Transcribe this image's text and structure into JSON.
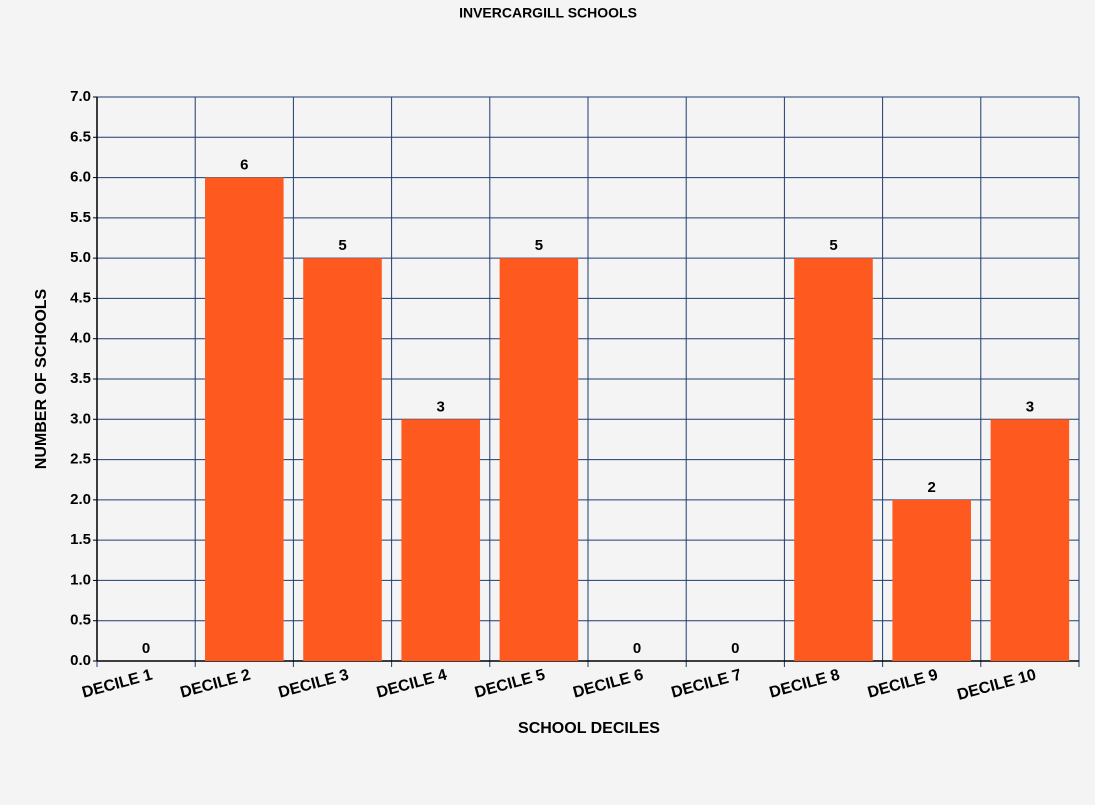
{
  "chart_data": {
    "type": "bar",
    "title": "INVERCARGILL SCHOOLS",
    "x_label": "SCHOOL DECILES",
    "y_label": "NUMBER OF SCHOOLS",
    "categories": [
      "DECILE 1",
      "DECILE 2",
      "DECILE 3",
      "DECILE 4",
      "DECILE 5",
      "DECILE 6",
      "DECILE 7",
      "DECILE 8",
      "DECILE 9",
      "DECILE 10"
    ],
    "values": [
      0,
      6,
      5,
      3,
      5,
      0,
      0,
      5,
      2,
      3
    ],
    "color": "#fe5a1f",
    "ylim": [
      0,
      7
    ],
    "yticks": [
      {
        "value": 0,
        "label": "0.0"
      },
      0.5,
      {
        "value": 1,
        "label": "1.0"
      },
      1.5,
      {
        "value": 2,
        "label": "2.0"
      },
      2.5,
      {
        "value": 3,
        "label": "3.0"
      },
      3.5,
      {
        "value": 4,
        "label": "4.0"
      },
      4.5,
      {
        "value": 5,
        "label": "5.0"
      },
      5.5,
      {
        "value": 6,
        "label": "6.0"
      },
      6.5,
      {
        "value": 7,
        "label": "7.0"
      }
    ],
    "grid": true
  }
}
